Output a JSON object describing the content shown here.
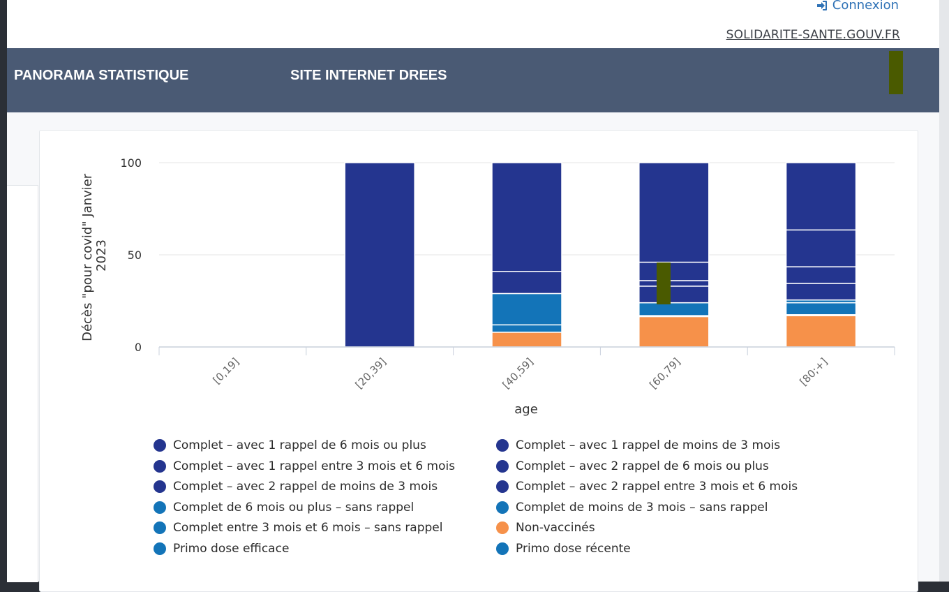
{
  "header": {
    "login_label": "Connexion",
    "site_link": "SOLIDARITE-SANTE.GOUV.FR"
  },
  "nav": {
    "items": [
      {
        "label": "PANORAMA STATISTIQUE"
      },
      {
        "label": "SITE INTERNET DREES"
      }
    ]
  },
  "colors": {
    "navy": "#24358f",
    "blue": "#1374b8",
    "orange": "#f6914a",
    "nav_bg": "#4a5a74",
    "link": "#2f72b6",
    "marker": "#4a5a00"
  },
  "chart_data": {
    "type": "bar",
    "stacked": true,
    "xlabel": "age",
    "ylabel": "Décès \"pour covid\" Janvier 2023",
    "ylim": [
      0,
      100
    ],
    "yticks": [
      0,
      50,
      100
    ],
    "categories": [
      "[0,19]",
      "[20,39]",
      "[40,59]",
      "[60,79]",
      "[80;+]"
    ],
    "series": [
      {
        "name": "Non-vaccinés",
        "color": "#f6914a",
        "values": [
          0,
          0,
          8,
          16.5,
          17
        ]
      },
      {
        "name": "Primo dose efficace",
        "color": "#1374b8",
        "values": [
          0,
          0,
          4,
          0.5,
          0.5
        ]
      },
      {
        "name": "Primo dose récente",
        "color": "#1374b8",
        "values": [
          0,
          0,
          0,
          0,
          0
        ]
      },
      {
        "name": "Complet de 6 mois ou plus - sans rappel",
        "color": "#1374b8",
        "values": [
          0,
          0,
          17,
          7,
          6.5
        ]
      },
      {
        "name": "Complet de moins de 3 mois - sans rappel",
        "color": "#1374b8",
        "values": [
          0,
          0,
          0,
          0,
          0
        ]
      },
      {
        "name": "Complet entre 3 mois et 6 mois - sans rappel",
        "color": "#1374b8",
        "values": [
          0,
          0,
          0,
          0,
          1.5
        ]
      },
      {
        "name": "Complet - avec 1 rappel de 6 mois ou plus",
        "color": "#24358f",
        "values": [
          0,
          100,
          12,
          9,
          9
        ]
      },
      {
        "name": "Complet - avec 1 rappel de moins de 3 mois",
        "color": "#24358f",
        "values": [
          0,
          0,
          0,
          0,
          0
        ]
      },
      {
        "name": "Complet - avec 1 rappel entre 3 mois et 6 mois",
        "color": "#24358f",
        "values": [
          0,
          0,
          0,
          3,
          0
        ]
      },
      {
        "name": "Complet - avec 2 rappel de 6 mois ou plus",
        "color": "#24358f",
        "values": [
          0,
          0,
          59,
          10,
          9
        ]
      },
      {
        "name": "Complet - avec 2 rappel de moins de 3 mois",
        "color": "#24358f",
        "values": [
          0,
          0,
          0,
          0,
          20
        ]
      },
      {
        "name": "Complet - avec 2 rappel entre 3 mois et 6 mois",
        "color": "#24358f",
        "values": [
          0,
          0,
          0,
          54,
          36.5
        ]
      }
    ],
    "legend": [
      {
        "name": "Complet - avec 1 rappel de 6 mois ou plus",
        "color": "#24358f"
      },
      {
        "name": "Complet - avec 1 rappel de moins de 3 mois",
        "color": "#24358f"
      },
      {
        "name": "Complet - avec 1 rappel entre 3 mois et 6 mois",
        "color": "#24358f"
      },
      {
        "name": "Complet - avec 2 rappel de 6 mois ou plus",
        "color": "#24358f"
      },
      {
        "name": "Complet - avec 2 rappel de moins de 3 mois",
        "color": "#24358f"
      },
      {
        "name": "Complet - avec 2 rappel entre 3 mois et 6 mois",
        "color": "#24358f"
      },
      {
        "name": "Complet de 6 mois ou plus - sans rappel",
        "color": "#1374b8"
      },
      {
        "name": "Complet de moins de 3 mois - sans rappel",
        "color": "#1374b8"
      },
      {
        "name": "Complet entre 3 mois et 6 mois - sans rappel",
        "color": "#1374b8"
      },
      {
        "name": "Non-vaccinés",
        "color": "#f6914a"
      },
      {
        "name": "Primo dose efficace",
        "color": "#1374b8"
      },
      {
        "name": "Primo dose récente",
        "color": "#1374b8"
      }
    ],
    "legend_placement": "bottom",
    "grid": true
  }
}
